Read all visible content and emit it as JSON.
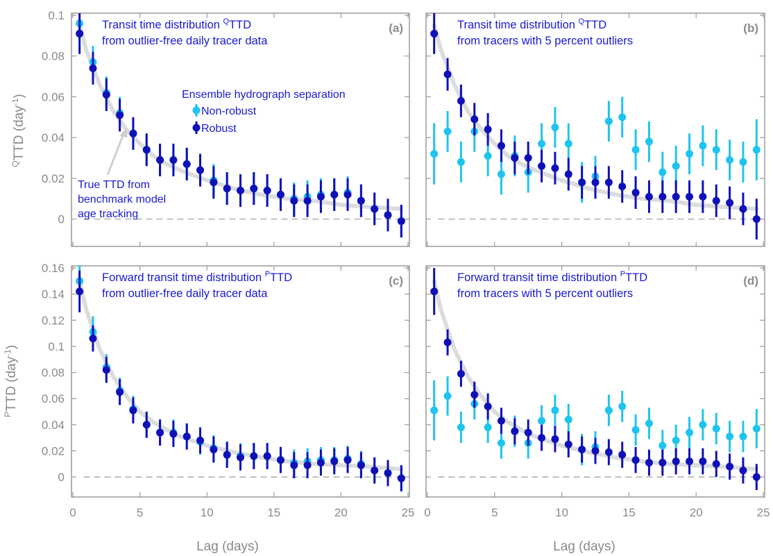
{
  "colors": {
    "nonrobust": "#1fc4ee",
    "robust": "#1010b8",
    "true_curve": "#dcdcdc",
    "axis": "#9a9a9a",
    "zero_line": "#b0b0b0",
    "title": "#1a1ad0"
  },
  "x_axis": {
    "label": "Lag (days)",
    "range": [
      0,
      25
    ],
    "ticks": [
      "0",
      "5",
      "10",
      "15",
      "20",
      "25"
    ]
  },
  "panels": [
    {
      "label": "(a)",
      "title_line1": "Transit time distribution ",
      "title_sup": "Q",
      "title_line1_end": "TTD",
      "title_line2": "from outlier-free daily tracer data",
      "ylabel_sup": "Q",
      "ylabel_main": "TTD (day",
      "ylabel_exp": "-1",
      "ylabel_end": ")",
      "ylim": [
        -0.01,
        0.1
      ],
      "yticks": [
        "0",
        "0.02",
        "0.04",
        "0.06",
        "0.08",
        "0.1"
      ],
      "legend_title": "Ensemble hydrograph separation",
      "legend_nonrobust": "Non-robust",
      "legend_robust": "Robust",
      "anno1": "True TTD from",
      "anno2": "benchmark model",
      "anno3": "age tracking"
    },
    {
      "label": "(b)",
      "title_line1": "Transit time distribution ",
      "title_sup": "Q",
      "title_line1_end": "TTD",
      "title_line2": "from tracers with 5 percent outliers",
      "ylim": [
        -0.01,
        0.1
      ]
    },
    {
      "label": "(c)",
      "title_line1": "Forward transit time distribution ",
      "title_sup": "P",
      "title_line1_end": "TTD",
      "title_line2": "from outlier-free daily tracer data",
      "ylabel_sup": "P",
      "ylabel_main": "TTD (day",
      "ylabel_exp": "-1",
      "ylabel_end": ")",
      "ylim": [
        -0.01,
        0.16
      ],
      "yticks": [
        "0",
        "0.02",
        "0.04",
        "0.06",
        "0.08",
        "0.1",
        "0.12",
        "0.14",
        "0.16"
      ]
    },
    {
      "label": "(d)",
      "title_line1": "Forward transit time distribution ",
      "title_sup": "P",
      "title_line1_end": "TTD",
      "title_line2": "from tracers with 5 percent outliers",
      "ylim": [
        -0.01,
        0.16
      ]
    }
  ],
  "chart_data": [
    {
      "type": "scatter",
      "panel": "(a)",
      "x": [
        0.5,
        1.5,
        2.5,
        3.5,
        4.5,
        5.5,
        6.5,
        7.5,
        8.5,
        9.5,
        10.5,
        11.5,
        12.5,
        13.5,
        14.5,
        15.5,
        16.5,
        17.5,
        18.5,
        19.5,
        20.5,
        21.5,
        22.5,
        23.5,
        24.5
      ],
      "series": [
        {
          "name": "Non-robust",
          "values": [
            0.096,
            0.077,
            0.062,
            0.052,
            0.042,
            0.034,
            0.029,
            0.029,
            0.027,
            0.024,
            0.019,
            0.015,
            0.014,
            0.015,
            0.014,
            0.012,
            0.01,
            0.011,
            0.012,
            0.012,
            0.013,
            0.009,
            0.005,
            0.002,
            -0.001
          ],
          "err": [
            0.004,
            0.008,
            0.008,
            0.008,
            0.008,
            0.008,
            0.008,
            0.008,
            0.008,
            0.008,
            0.008,
            0.008,
            0.008,
            0.008,
            0.008,
            0.008,
            0.008,
            0.008,
            0.008,
            0.008,
            0.008,
            0.008,
            0.008,
            0.008,
            0.008
          ]
        },
        {
          "name": "Robust",
          "values": [
            0.091,
            0.074,
            0.061,
            0.051,
            0.042,
            0.034,
            0.029,
            0.029,
            0.027,
            0.024,
            0.018,
            0.015,
            0.014,
            0.015,
            0.014,
            0.012,
            0.009,
            0.009,
            0.011,
            0.012,
            0.012,
            0.009,
            0.005,
            0.002,
            -0.001
          ],
          "err": [
            0.01,
            0.008,
            0.008,
            0.008,
            0.008,
            0.008,
            0.008,
            0.008,
            0.008,
            0.008,
            0.008,
            0.008,
            0.008,
            0.008,
            0.008,
            0.008,
            0.008,
            0.008,
            0.008,
            0.008,
            0.008,
            0.008,
            0.008,
            0.008,
            0.008
          ]
        }
      ],
      "true_ttd": [
        [
          0.5,
          0.095
        ],
        [
          1,
          0.083
        ],
        [
          2,
          0.066
        ],
        [
          3,
          0.053
        ],
        [
          4,
          0.044
        ],
        [
          5,
          0.037
        ],
        [
          6,
          0.031
        ],
        [
          7,
          0.027
        ],
        [
          8,
          0.024
        ],
        [
          10,
          0.019
        ],
        [
          12,
          0.015
        ],
        [
          14,
          0.012
        ],
        [
          16,
          0.01
        ],
        [
          18,
          0.009
        ],
        [
          20,
          0.007
        ],
        [
          22,
          0.006
        ],
        [
          24.5,
          0.005
        ]
      ]
    },
    {
      "type": "scatter",
      "panel": "(b)",
      "x": [
        0.5,
        1.5,
        2.5,
        3.5,
        4.5,
        5.5,
        6.5,
        7.5,
        8.5,
        9.5,
        10.5,
        11.5,
        12.5,
        13.5,
        14.5,
        15.5,
        16.5,
        17.5,
        18.5,
        19.5,
        20.5,
        21.5,
        22.5,
        23.5,
        24.5
      ],
      "series": [
        {
          "name": "Non-robust",
          "values": [
            0.032,
            0.043,
            0.028,
            0.043,
            0.031,
            0.022,
            0.031,
            0.023,
            0.037,
            0.045,
            0.037,
            0.018,
            0.021,
            0.048,
            0.05,
            0.034,
            0.038,
            0.023,
            0.026,
            0.032,
            0.036,
            0.034,
            0.029,
            0.028,
            0.034
          ],
          "err": [
            0.015,
            0.01,
            0.01,
            0.01,
            0.01,
            0.01,
            0.01,
            0.01,
            0.01,
            0.01,
            0.01,
            0.01,
            0.01,
            0.01,
            0.01,
            0.01,
            0.01,
            0.01,
            0.01,
            0.01,
            0.01,
            0.01,
            0.01,
            0.01,
            0.015
          ]
        },
        {
          "name": "Robust",
          "values": [
            0.091,
            0.071,
            0.058,
            0.049,
            0.044,
            0.036,
            0.03,
            0.03,
            0.026,
            0.025,
            0.022,
            0.018,
            0.018,
            0.018,
            0.016,
            0.013,
            0.011,
            0.011,
            0.011,
            0.011,
            0.011,
            0.009,
            0.008,
            0.005,
            0.0
          ],
          "err": [
            0.01,
            0.008,
            0.008,
            0.008,
            0.008,
            0.008,
            0.008,
            0.008,
            0.008,
            0.008,
            0.008,
            0.008,
            0.008,
            0.008,
            0.008,
            0.008,
            0.008,
            0.008,
            0.008,
            0.008,
            0.008,
            0.008,
            0.008,
            0.008,
            0.01
          ]
        }
      ],
      "true_ttd": [
        [
          0.5,
          0.095
        ],
        [
          1,
          0.083
        ],
        [
          2,
          0.066
        ],
        [
          3,
          0.053
        ],
        [
          4,
          0.044
        ],
        [
          5,
          0.037
        ],
        [
          6,
          0.031
        ],
        [
          7,
          0.027
        ],
        [
          8,
          0.024
        ],
        [
          10,
          0.019
        ],
        [
          12,
          0.015
        ],
        [
          14,
          0.012
        ],
        [
          16,
          0.01
        ],
        [
          18,
          0.009
        ],
        [
          20,
          0.007
        ],
        [
          22,
          0.006
        ],
        [
          24.5,
          0.005
        ]
      ]
    },
    {
      "type": "scatter",
      "panel": "(c)",
      "x": [
        0.5,
        1.5,
        2.5,
        3.5,
        4.5,
        5.5,
        6.5,
        7.5,
        8.5,
        9.5,
        10.5,
        11.5,
        12.5,
        13.5,
        14.5,
        15.5,
        16.5,
        17.5,
        18.5,
        19.5,
        20.5,
        21.5,
        22.5,
        23.5,
        24.5
      ],
      "series": [
        {
          "name": "Non-robust",
          "values": [
            0.15,
            0.111,
            0.084,
            0.066,
            0.052,
            0.04,
            0.034,
            0.034,
            0.031,
            0.027,
            0.022,
            0.017,
            0.016,
            0.016,
            0.016,
            0.013,
            0.011,
            0.012,
            0.013,
            0.013,
            0.014,
            0.01,
            0.005,
            0.003,
            -0.001
          ],
          "err": [
            0.012,
            0.012,
            0.01,
            0.01,
            0.01,
            0.01,
            0.01,
            0.01,
            0.01,
            0.01,
            0.01,
            0.01,
            0.01,
            0.01,
            0.01,
            0.01,
            0.01,
            0.01,
            0.01,
            0.01,
            0.01,
            0.01,
            0.01,
            0.01,
            0.01
          ]
        },
        {
          "name": "Robust",
          "values": [
            0.142,
            0.106,
            0.082,
            0.065,
            0.051,
            0.04,
            0.034,
            0.033,
            0.031,
            0.028,
            0.021,
            0.017,
            0.015,
            0.016,
            0.016,
            0.013,
            0.009,
            0.009,
            0.011,
            0.012,
            0.013,
            0.009,
            0.005,
            0.003,
            -0.001
          ],
          "err": [
            0.016,
            0.01,
            0.01,
            0.01,
            0.01,
            0.01,
            0.01,
            0.01,
            0.01,
            0.01,
            0.01,
            0.01,
            0.01,
            0.01,
            0.01,
            0.01,
            0.01,
            0.01,
            0.01,
            0.01,
            0.01,
            0.01,
            0.01,
            0.01,
            0.01
          ]
        }
      ],
      "true_ttd": [
        [
          0.5,
          0.15
        ],
        [
          1,
          0.128
        ],
        [
          2,
          0.098
        ],
        [
          3,
          0.077
        ],
        [
          4,
          0.062
        ],
        [
          5,
          0.05
        ],
        [
          6,
          0.042
        ],
        [
          7,
          0.036
        ],
        [
          8,
          0.031
        ],
        [
          10,
          0.024
        ],
        [
          12,
          0.019
        ],
        [
          14,
          0.015
        ],
        [
          16,
          0.012
        ],
        [
          18,
          0.01
        ],
        [
          20,
          0.009
        ],
        [
          22,
          0.008
        ],
        [
          24.5,
          0.006
        ]
      ]
    },
    {
      "type": "scatter",
      "panel": "(d)",
      "x": [
        0.5,
        1.5,
        2.5,
        3.5,
        4.5,
        5.5,
        6.5,
        7.5,
        8.5,
        9.5,
        10.5,
        11.5,
        12.5,
        13.5,
        14.5,
        15.5,
        16.5,
        17.5,
        18.5,
        19.5,
        20.5,
        21.5,
        22.5,
        23.5,
        24.5
      ],
      "series": [
        {
          "name": "Non-robust",
          "values": [
            0.051,
            0.062,
            0.038,
            0.056,
            0.038,
            0.026,
            0.035,
            0.026,
            0.043,
            0.051,
            0.044,
            0.021,
            0.023,
            0.051,
            0.054,
            0.036,
            0.041,
            0.024,
            0.028,
            0.034,
            0.04,
            0.037,
            0.031,
            0.031,
            0.037
          ],
          "err": [
            0.023,
            0.015,
            0.012,
            0.012,
            0.012,
            0.012,
            0.012,
            0.012,
            0.012,
            0.012,
            0.012,
            0.012,
            0.012,
            0.012,
            0.012,
            0.012,
            0.012,
            0.012,
            0.012,
            0.012,
            0.012,
            0.012,
            0.012,
            0.012,
            0.015
          ]
        },
        {
          "name": "Robust",
          "values": [
            0.142,
            0.103,
            0.079,
            0.063,
            0.054,
            0.043,
            0.035,
            0.034,
            0.03,
            0.029,
            0.025,
            0.021,
            0.02,
            0.019,
            0.017,
            0.013,
            0.011,
            0.011,
            0.012,
            0.012,
            0.012,
            0.01,
            0.008,
            0.005,
            0.0
          ],
          "err": [
            0.018,
            0.01,
            0.01,
            0.01,
            0.01,
            0.01,
            0.01,
            0.01,
            0.01,
            0.01,
            0.01,
            0.01,
            0.01,
            0.01,
            0.01,
            0.01,
            0.01,
            0.01,
            0.01,
            0.01,
            0.01,
            0.01,
            0.01,
            0.01,
            0.01
          ]
        }
      ],
      "true_ttd": [
        [
          0.5,
          0.15
        ],
        [
          1,
          0.128
        ],
        [
          2,
          0.098
        ],
        [
          3,
          0.077
        ],
        [
          4,
          0.062
        ],
        [
          5,
          0.05
        ],
        [
          6,
          0.042
        ],
        [
          7,
          0.036
        ],
        [
          8,
          0.031
        ],
        [
          10,
          0.024
        ],
        [
          12,
          0.019
        ],
        [
          14,
          0.015
        ],
        [
          16,
          0.012
        ],
        [
          18,
          0.01
        ],
        [
          20,
          0.009
        ],
        [
          22,
          0.008
        ],
        [
          24.5,
          0.006
        ]
      ]
    }
  ]
}
